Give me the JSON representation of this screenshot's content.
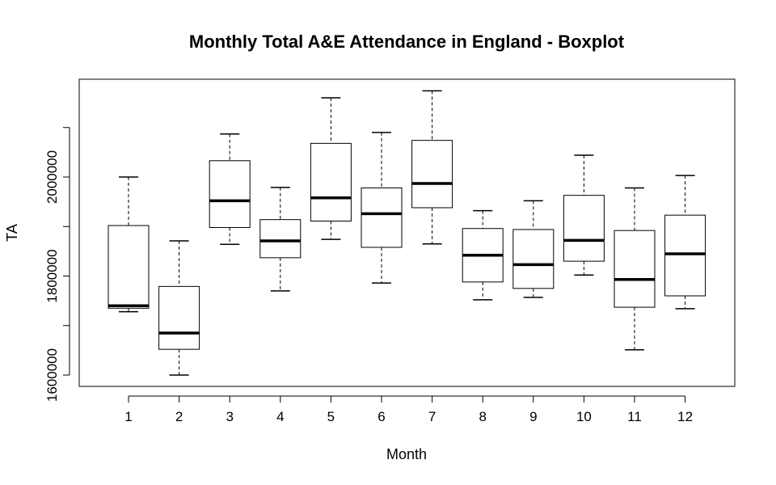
{
  "chart_data": {
    "type": "boxplot",
    "title": "Monthly Total A&E Attendance in England - Boxplot",
    "xlabel": "Month",
    "ylabel": "TA",
    "ylim": [
      1580000,
      2175000
    ],
    "y_ticks": [
      1600000,
      1700000,
      1800000,
      1900000,
      2000000,
      2100000
    ],
    "y_tick_labels": [
      "1600000",
      "",
      "1800000",
      "",
      "2000000",
      ""
    ],
    "categories": [
      "1",
      "2",
      "3",
      "4",
      "5",
      "6",
      "7",
      "8",
      "9",
      "10",
      "11",
      "12"
    ],
    "boxes": [
      {
        "month": "1",
        "min": 1728000,
        "q1": 1735000,
        "median": 1740000,
        "q3": 1902000,
        "max": 2000000
      },
      {
        "month": "2",
        "min": 1600000,
        "q1": 1652000,
        "median": 1685000,
        "q3": 1779000,
        "max": 1871000
      },
      {
        "month": "3",
        "min": 1864000,
        "q1": 1898000,
        "median": 1952000,
        "q3": 2033000,
        "max": 2087000
      },
      {
        "month": "4",
        "min": 1770000,
        "q1": 1837000,
        "median": 1871000,
        "q3": 1914000,
        "max": 1979000
      },
      {
        "month": "5",
        "min": 1874000,
        "q1": 1911000,
        "median": 1958000,
        "q3": 2068000,
        "max": 2160000
      },
      {
        "month": "6",
        "min": 1786000,
        "q1": 1858000,
        "median": 1926000,
        "q3": 1978000,
        "max": 2090000
      },
      {
        "month": "7",
        "min": 1865000,
        "q1": 1938000,
        "median": 1987000,
        "q3": 2074000,
        "max": 2174000
      },
      {
        "month": "8",
        "min": 1752000,
        "q1": 1788000,
        "median": 1842000,
        "q3": 1896000,
        "max": 1932000
      },
      {
        "month": "9",
        "min": 1757000,
        "q1": 1775000,
        "median": 1823000,
        "q3": 1894000,
        "max": 1952000
      },
      {
        "month": "10",
        "min": 1802000,
        "q1": 1830000,
        "median": 1872000,
        "q3": 1963000,
        "max": 2044000
      },
      {
        "month": "11",
        "min": 1651000,
        "q1": 1737000,
        "median": 1793000,
        "q3": 1892000,
        "max": 1978000
      },
      {
        "month": "12",
        "min": 1734000,
        "q1": 1760000,
        "median": 1845000,
        "q3": 1923000,
        "max": 2003000
      }
    ],
    "grid": false,
    "legend": "none",
    "colors": {
      "box_fill": "#ffffff",
      "stroke": "#000000"
    }
  }
}
